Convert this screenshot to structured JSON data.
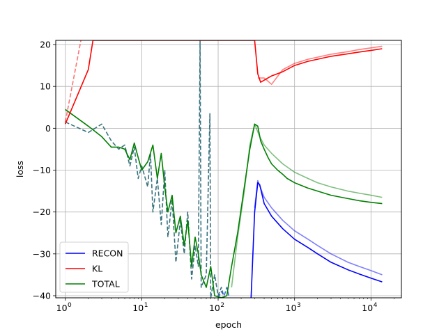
{
  "chart_data": {
    "type": "line",
    "xlabel": "epoch",
    "ylabel": "loss",
    "xscale": "log",
    "xlim": [
      0.75,
      25000
    ],
    "ylim": [
      -40.5,
      21
    ],
    "grid": true,
    "x_ticks": [
      1,
      10,
      100,
      1000,
      10000
    ],
    "x_tick_labels": [
      {
        "base": "10",
        "exp": "0"
      },
      {
        "base": "10",
        "exp": "1"
      },
      {
        "base": "10",
        "exp": "2"
      },
      {
        "base": "10",
        "exp": "3"
      },
      {
        "base": "10",
        "exp": "4"
      }
    ],
    "y_ticks": [
      20,
      10,
      0,
      -10,
      -20,
      -30,
      -40
    ],
    "y_tick_labels": [
      "20",
      "10",
      "0",
      "−10",
      "−20",
      "−30",
      "−40"
    ],
    "legend": {
      "placement": "lower-left",
      "entries": [
        {
          "label": "RECON",
          "color": "#0000ff"
        },
        {
          "label": "KL",
          "color": "#ff0000"
        },
        {
          "label": "TOTAL",
          "color": "#008000"
        }
      ]
    },
    "series": [
      {
        "name": "TOTAL",
        "color": "#008000",
        "solid": [
          [
            1,
            4.5
          ],
          [
            2,
            0.5
          ],
          [
            3,
            -2
          ],
          [
            4,
            -4.5
          ],
          [
            5,
            -4.5
          ],
          [
            6,
            -5
          ],
          [
            7,
            -7.5
          ],
          [
            8,
            -3.5
          ],
          [
            9,
            -7
          ],
          [
            10,
            -10
          ],
          [
            12,
            -8
          ],
          [
            14,
            -4
          ],
          [
            16,
            -12
          ],
          [
            18,
            -6
          ],
          [
            20,
            -14
          ],
          [
            22,
            -20
          ],
          [
            25,
            -16
          ],
          [
            28,
            -25
          ],
          [
            32,
            -21
          ],
          [
            36,
            -28
          ],
          [
            40,
            -22
          ],
          [
            45,
            -33
          ],
          [
            50,
            -26
          ],
          [
            55,
            -30
          ],
          [
            60,
            -35
          ],
          [
            70,
            -38
          ],
          [
            80,
            -33
          ],
          [
            90,
            -40
          ],
          [
            110,
            -40.5
          ],
          [
            130,
            -40
          ],
          [
            150,
            -33
          ],
          [
            180,
            -25
          ],
          [
            220,
            -14
          ],
          [
            260,
            -5
          ],
          [
            300,
            1
          ],
          [
            330,
            0.5
          ],
          [
            360,
            -3
          ],
          [
            400,
            -5
          ],
          [
            450,
            -7
          ],
          [
            500,
            -8.5
          ],
          [
            600,
            -10
          ],
          [
            700,
            -11
          ],
          [
            800,
            -12
          ],
          [
            1000,
            -13
          ],
          [
            1500,
            -14.3
          ],
          [
            2000,
            -15
          ],
          [
            3000,
            -16
          ],
          [
            5000,
            -16.8
          ],
          [
            7000,
            -17.3
          ],
          [
            10000,
            -17.7
          ],
          [
            14000,
            -18
          ]
        ],
        "light": [
          [
            150,
            -38
          ],
          [
            180,
            -26
          ],
          [
            220,
            -15
          ],
          [
            260,
            -4
          ],
          [
            300,
            1
          ],
          [
            350,
            -2
          ],
          [
            400,
            -4
          ],
          [
            500,
            -6
          ],
          [
            700,
            -8.5
          ],
          [
            1000,
            -10.5
          ],
          [
            1500,
            -12
          ],
          [
            2000,
            -13
          ],
          [
            3000,
            -14
          ],
          [
            5000,
            -15
          ],
          [
            7000,
            -15.5
          ],
          [
            10000,
            -16
          ],
          [
            14000,
            -16.5
          ]
        ],
        "dashed": [
          [
            1,
            1.5
          ],
          [
            2,
            -1
          ],
          [
            3,
            1
          ],
          [
            4,
            -3
          ],
          [
            5,
            -5
          ],
          [
            6,
            -4
          ],
          [
            7,
            -9
          ],
          [
            8,
            -4.5
          ],
          [
            9,
            -12
          ],
          [
            10,
            -9
          ],
          [
            12,
            -14
          ],
          [
            13,
            -6
          ],
          [
            14,
            -20
          ],
          [
            16,
            -12
          ],
          [
            18,
            -23
          ],
          [
            20,
            -10
          ],
          [
            22,
            -26
          ],
          [
            25,
            -17
          ],
          [
            28,
            -32
          ],
          [
            32,
            -22
          ],
          [
            36,
            -30
          ],
          [
            40,
            -20
          ],
          [
            45,
            -36
          ],
          [
            50,
            -28
          ],
          [
            55,
            -33
          ],
          [
            58,
            21
          ],
          [
            60,
            -38
          ],
          [
            70,
            -35
          ],
          [
            78,
            3.5
          ],
          [
            80,
            -40.5
          ],
          [
            90,
            -35
          ],
          [
            100,
            -40
          ],
          [
            110,
            -38
          ],
          [
            120,
            -40.5
          ]
        ]
      },
      {
        "name": "RECON",
        "color": "#0000ff",
        "solid": [
          [
            270,
            -40.5
          ],
          [
            300,
            -20
          ],
          [
            330,
            -13
          ],
          [
            350,
            -13.5
          ],
          [
            400,
            -18
          ],
          [
            500,
            -21
          ],
          [
            700,
            -24
          ],
          [
            1000,
            -26.5
          ],
          [
            1500,
            -28.5
          ],
          [
            2000,
            -30
          ],
          [
            3000,
            -32
          ],
          [
            5000,
            -33.8
          ],
          [
            7000,
            -34.8
          ],
          [
            10000,
            -35.8
          ],
          [
            14000,
            -36.7
          ]
        ],
        "light": [
          [
            300,
            -19
          ],
          [
            330,
            -12.5
          ],
          [
            400,
            -16.5
          ],
          [
            500,
            -19
          ],
          [
            700,
            -22
          ],
          [
            1000,
            -24.5
          ],
          [
            1500,
            -26.5
          ],
          [
            2000,
            -28
          ],
          [
            3000,
            -30
          ],
          [
            5000,
            -32
          ],
          [
            7000,
            -33
          ],
          [
            10000,
            -34
          ],
          [
            14000,
            -35
          ]
        ],
        "dashed": [
          [
            100,
            -40.5
          ],
          [
            110,
            -39
          ],
          [
            120,
            -40
          ],
          [
            130,
            -38
          ],
          [
            140,
            -40.5
          ]
        ]
      },
      {
        "name": "KL",
        "color": "#ff0000",
        "solid": [
          [
            1,
            1
          ],
          [
            2,
            14
          ],
          [
            2.3,
            21
          ],
          [
            300,
            21
          ],
          [
            330,
            13
          ],
          [
            360,
            11
          ],
          [
            400,
            11.5
          ],
          [
            500,
            12.5
          ],
          [
            700,
            13.5
          ],
          [
            1000,
            15
          ],
          [
            1500,
            16
          ],
          [
            2000,
            16.5
          ],
          [
            3000,
            17.2
          ],
          [
            5000,
            17.8
          ],
          [
            7000,
            18.2
          ],
          [
            10000,
            18.6
          ],
          [
            14000,
            19
          ]
        ],
        "light": [
          [
            330,
            12
          ],
          [
            400,
            12
          ],
          [
            500,
            10.5
          ],
          [
            700,
            14
          ],
          [
            1000,
            15.5
          ],
          [
            1500,
            16.5
          ],
          [
            2000,
            17
          ],
          [
            3000,
            17.7
          ],
          [
            5000,
            18.3
          ],
          [
            7000,
            18.8
          ],
          [
            10000,
            19.2
          ],
          [
            14000,
            19.6
          ]
        ],
        "dashed": [
          [
            1,
            1.5
          ],
          [
            1.6,
            21
          ]
        ]
      }
    ]
  }
}
